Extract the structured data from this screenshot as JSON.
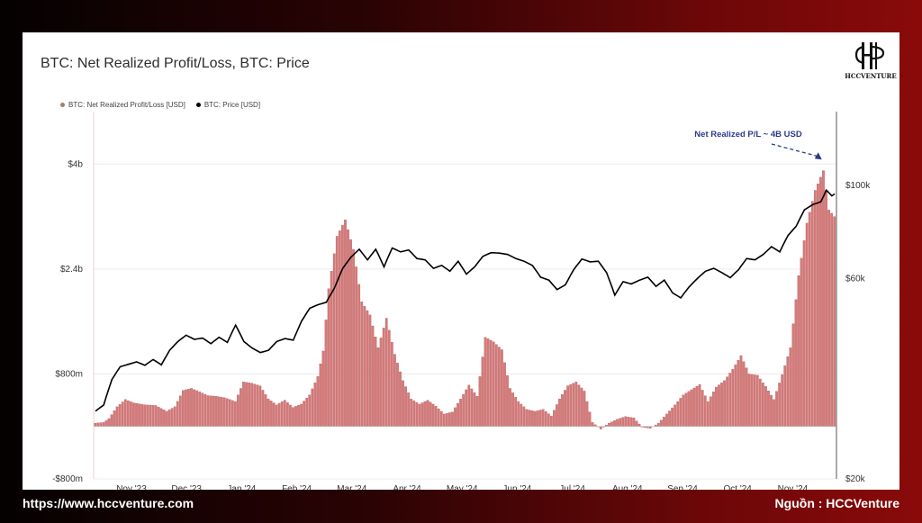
{
  "header": {
    "title": "BTC: Net Realized Profit/Loss, BTC: Price"
  },
  "logo": {
    "text": "HCCVENTURE"
  },
  "footer": {
    "url": "https://www.hccventure.com",
    "source": "Nguồn : HCCVenture"
  },
  "colors": {
    "bars": "#d47a7a",
    "bar_stroke": "#b85a5a",
    "price": "#000000",
    "annotation": "#2c3a8c"
  },
  "chart_data": {
    "type": "bar",
    "title": "BTC: Net Realized Profit/Loss, BTC: Price",
    "legend": [
      {
        "name": "BTC: Net Realized Profit/Loss [USD]",
        "color": "#a08070"
      },
      {
        "name": "BTC: Price [USD]",
        "color": "#000000"
      }
    ],
    "legend_position": "top-left",
    "grid": true,
    "x_ticks": [
      "Nov '23",
      "Dec '23",
      "Jan '24",
      "Feb '24",
      "Mar '24",
      "Apr '24",
      "May '24",
      "Jun '24",
      "Jul '24",
      "Aug '24",
      "Sep '24",
      "Oct '24",
      "Nov '24"
    ],
    "y_left": {
      "ticks": [
        "$4b",
        "$2.4b",
        "$800m",
        "-$800m"
      ],
      "tick_values": [
        4000,
        2400,
        800,
        -800
      ],
      "range": [
        -800,
        4800
      ],
      "unit": "million USD"
    },
    "y_right": {
      "ticks": [
        "$100k",
        "$60k",
        "$20k"
      ],
      "tick_values": [
        100000,
        60000,
        20000
      ],
      "scale": "log",
      "range": [
        20000,
        150000
      ]
    },
    "annotation": {
      "text": "Net Realized P/L ~ 4B USD",
      "value": 4000
    },
    "series": [
      {
        "name": "BTC: Net Realized Profit/Loss [USD]",
        "kind": "bar",
        "keyframes": [
          [
            0,
            50
          ],
          [
            3,
            60
          ],
          [
            5,
            120
          ],
          [
            8,
            300
          ],
          [
            11,
            410
          ],
          [
            14,
            360
          ],
          [
            18,
            330
          ],
          [
            22,
            320
          ],
          [
            26,
            230
          ],
          [
            29,
            300
          ],
          [
            32,
            550
          ],
          [
            35,
            580
          ],
          [
            38,
            530
          ],
          [
            41,
            470
          ],
          [
            44,
            460
          ],
          [
            47,
            440
          ],
          [
            51,
            380
          ],
          [
            54,
            680
          ],
          [
            57,
            660
          ],
          [
            60,
            620
          ],
          [
            63,
            420
          ],
          [
            66,
            330
          ],
          [
            69,
            400
          ],
          [
            72,
            290
          ],
          [
            75,
            340
          ],
          [
            78,
            480
          ],
          [
            81,
            760
          ],
          [
            83,
            1150
          ],
          [
            85,
            2100
          ],
          [
            88,
            2900
          ],
          [
            91,
            3150
          ],
          [
            94,
            2700
          ],
          [
            97,
            1900
          ],
          [
            100,
            1700
          ],
          [
            103,
            1200
          ],
          [
            106,
            1650
          ],
          [
            109,
            1100
          ],
          [
            112,
            700
          ],
          [
            115,
            420
          ],
          [
            118,
            340
          ],
          [
            121,
            400
          ],
          [
            124,
            310
          ],
          [
            127,
            190
          ],
          [
            130,
            220
          ],
          [
            133,
            420
          ],
          [
            136,
            630
          ],
          [
            139,
            460
          ],
          [
            142,
            1360
          ],
          [
            145,
            1290
          ],
          [
            148,
            1170
          ],
          [
            151,
            580
          ],
          [
            154,
            380
          ],
          [
            157,
            260
          ],
          [
            160,
            230
          ],
          [
            163,
            260
          ],
          [
            166,
            160
          ],
          [
            169,
            420
          ],
          [
            172,
            620
          ],
          [
            175,
            680
          ],
          [
            178,
            540
          ],
          [
            181,
            60
          ],
          [
            184,
            -40
          ],
          [
            187,
            50
          ],
          [
            190,
            110
          ],
          [
            193,
            150
          ],
          [
            196,
            130
          ],
          [
            199,
            -10
          ],
          [
            202,
            -30
          ],
          [
            205,
            50
          ],
          [
            208,
            190
          ],
          [
            211,
            330
          ],
          [
            214,
            480
          ],
          [
            217,
            560
          ],
          [
            220,
            640
          ],
          [
            223,
            380
          ],
          [
            226,
            600
          ],
          [
            229,
            700
          ],
          [
            232,
            870
          ],
          [
            235,
            1080
          ],
          [
            238,
            800
          ],
          [
            241,
            780
          ],
          [
            244,
            610
          ],
          [
            247,
            410
          ],
          [
            250,
            790
          ],
          [
            253,
            1200
          ],
          [
            256,
            2300
          ],
          [
            259,
            3100
          ],
          [
            262,
            3600
          ],
          [
            265,
            3900
          ],
          [
            267,
            3300
          ],
          [
            269,
            3200
          ]
        ]
      },
      {
        "name": "BTC: Price [USD]",
        "kind": "line",
        "keyframes": [
          [
            0,
            29000
          ],
          [
            3,
            30000
          ],
          [
            6,
            34500
          ],
          [
            9,
            37000
          ],
          [
            12,
            37500
          ],
          [
            15,
            38000
          ],
          [
            18,
            37300
          ],
          [
            21,
            38500
          ],
          [
            24,
            37400
          ],
          [
            27,
            40500
          ],
          [
            30,
            42500
          ],
          [
            33,
            44000
          ],
          [
            36,
            43000
          ],
          [
            39,
            43300
          ],
          [
            42,
            42000
          ],
          [
            45,
            43500
          ],
          [
            48,
            42300
          ],
          [
            51,
            46500
          ],
          [
            54,
            42500
          ],
          [
            57,
            41000
          ],
          [
            60,
            40000
          ],
          [
            63,
            40500
          ],
          [
            66,
            42500
          ],
          [
            69,
            43200
          ],
          [
            72,
            42800
          ],
          [
            75,
            47500
          ],
          [
            78,
            51000
          ],
          [
            81,
            52000
          ],
          [
            84,
            52700
          ],
          [
            87,
            57000
          ],
          [
            90,
            63500
          ],
          [
            93,
            67500
          ],
          [
            96,
            70500
          ],
          [
            99,
            66500
          ],
          [
            102,
            70500
          ],
          [
            105,
            64000
          ],
          [
            108,
            71000
          ],
          [
            111,
            69500
          ],
          [
            114,
            70200
          ],
          [
            117,
            67000
          ],
          [
            120,
            66500
          ],
          [
            123,
            63500
          ],
          [
            126,
            64500
          ],
          [
            129,
            62500
          ],
          [
            132,
            66000
          ],
          [
            135,
            61500
          ],
          [
            138,
            64000
          ],
          [
            141,
            67800
          ],
          [
            144,
            69200
          ],
          [
            147,
            69000
          ],
          [
            150,
            68500
          ],
          [
            153,
            67000
          ],
          [
            156,
            66000
          ],
          [
            159,
            64500
          ],
          [
            162,
            60500
          ],
          [
            165,
            59500
          ],
          [
            168,
            56500
          ],
          [
            171,
            58000
          ],
          [
            174,
            63000
          ],
          [
            177,
            66800
          ],
          [
            180,
            65800
          ],
          [
            183,
            66000
          ],
          [
            186,
            62000
          ],
          [
            189,
            54800
          ],
          [
            192,
            59000
          ],
          [
            195,
            58300
          ],
          [
            198,
            59500
          ],
          [
            201,
            60500
          ],
          [
            204,
            57500
          ],
          [
            207,
            59500
          ],
          [
            210,
            55500
          ],
          [
            213,
            54000
          ],
          [
            216,
            57300
          ],
          [
            219,
            60000
          ],
          [
            222,
            62500
          ],
          [
            225,
            63500
          ],
          [
            228,
            62000
          ],
          [
            231,
            60300
          ],
          [
            234,
            63000
          ],
          [
            237,
            67000
          ],
          [
            240,
            66500
          ],
          [
            243,
            68500
          ],
          [
            246,
            71500
          ],
          [
            249,
            69500
          ],
          [
            252,
            76000
          ],
          [
            255,
            80000
          ],
          [
            258,
            87500
          ],
          [
            261,
            90000
          ],
          [
            264,
            91500
          ],
          [
            266,
            97500
          ],
          [
            268,
            94500
          ],
          [
            269,
            95500
          ]
        ]
      }
    ],
    "x_range_days": 269
  }
}
